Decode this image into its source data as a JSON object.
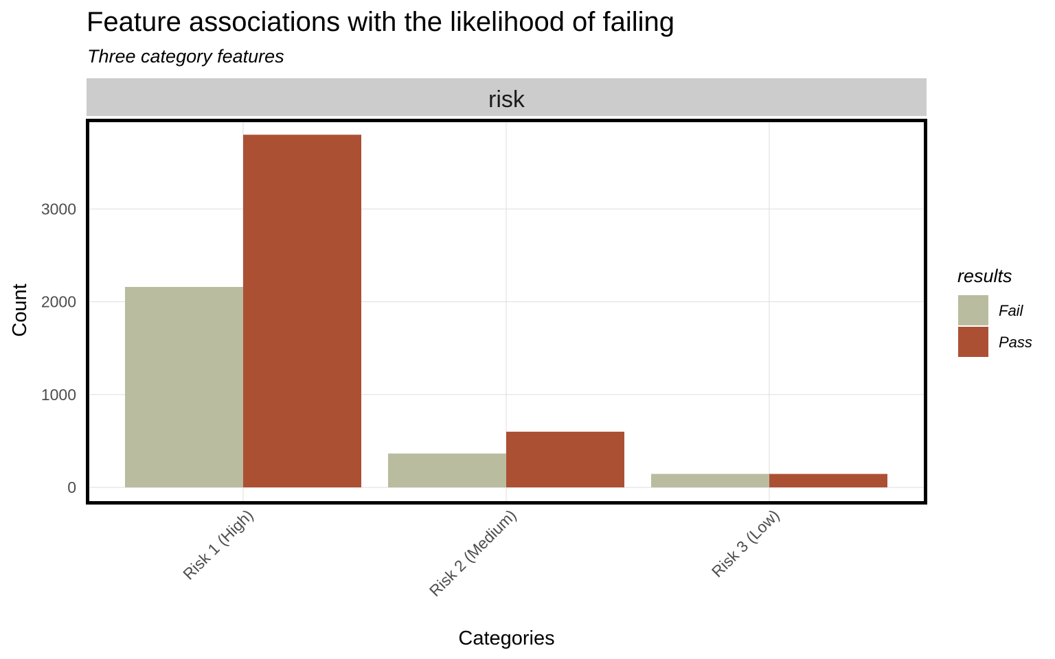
{
  "title": "Feature associations with the likelihood of failing",
  "subtitle": "Three category features",
  "chart_data": {
    "type": "bar",
    "facet": "risk",
    "categories": [
      "Risk 1 (High)",
      "Risk 2 (Medium)",
      "Risk 3 (Low)"
    ],
    "series": [
      {
        "name": "Fail",
        "color": "#b9bc9f",
        "values": [
          2160,
          365,
          145
        ]
      },
      {
        "name": "Pass",
        "color": "#ac5034",
        "values": [
          3800,
          600,
          145
        ]
      }
    ],
    "xlabel": "Categories",
    "ylabel": "Count",
    "ylim": [
      0,
      4000
    ],
    "yticks": [
      0,
      1000,
      2000,
      3000
    ],
    "grid": true,
    "legend_title": "results",
    "legend_position": "right"
  }
}
